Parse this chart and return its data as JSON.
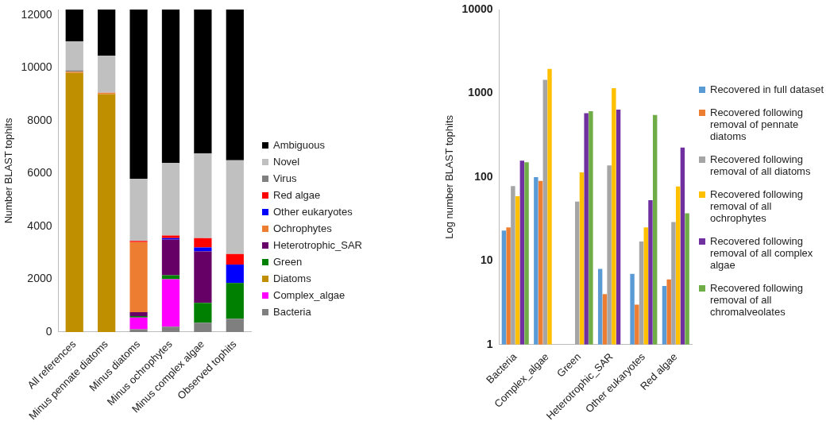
{
  "chart_data": [
    {
      "type": "bar",
      "stacked": true,
      "ylabel": "Number BLAST tophits",
      "categories": [
        "All references",
        "Minus pennate diatoms",
        "Minus diatoms",
        "Minus ochrophytes",
        "Minus complex algae",
        "Observed tophits"
      ],
      "ylim": [
        0,
        12200
      ],
      "yticks": [
        0,
        2000,
        4000,
        6000,
        8000,
        10000,
        12000
      ],
      "legend": "right",
      "series": [
        {
          "name": "Bacteria",
          "color": "#7f7f7f",
          "values": [
            null,
            null,
            100,
            200,
            350,
            500
          ]
        },
        {
          "name": "Complex_algae",
          "color": "#ff00ff",
          "values": [
            0,
            0,
            450,
            1800,
            0,
            0
          ]
        },
        {
          "name": "Diatoms",
          "color": "#bf8f00",
          "values": [
            9800,
            9000,
            0,
            0,
            0,
            0
          ]
        },
        {
          "name": "Green",
          "color": "#008000",
          "values": [
            0,
            0,
            50,
            150,
            750,
            1350
          ]
        },
        {
          "name": "Heterotrophic_SAR",
          "color": "#660066",
          "values": [
            0,
            0,
            150,
            1350,
            1950,
            0
          ]
        },
        {
          "name": "Ochrophytes",
          "color": "#ed7d31",
          "values": [
            50,
            50,
            2650,
            0,
            0,
            0
          ]
        },
        {
          "name": "Other eukaryotes",
          "color": "#0000ff",
          "values": [
            0,
            0,
            0,
            50,
            150,
            700
          ]
        },
        {
          "name": "Red algae",
          "color": "#ff0000",
          "values": [
            0,
            0,
            50,
            100,
            350,
            400
          ]
        },
        {
          "name": "Virus",
          "color": "#808080",
          "values": [
            50,
            0,
            0,
            0,
            0,
            0
          ]
        },
        {
          "name": "Novel",
          "color": "#c0c0c0",
          "values": [
            1100,
            1400,
            2350,
            2750,
            3200,
            3550
          ]
        },
        {
          "name": "Ambiguous",
          "color": "#000000",
          "values": [
            1200,
            1750,
            6400,
            5800,
            5450,
            5700
          ]
        }
      ]
    },
    {
      "type": "bar",
      "log": "y",
      "ylabel": "Log number BLAST tophits",
      "categories": [
        "Bacteria",
        "Complex_algae",
        "Green",
        "Heterotrophic_SAR",
        "Other eukaryotes",
        "Red algae"
      ],
      "ylim": [
        1,
        10000
      ],
      "yticks": [
        1,
        10,
        100,
        1000,
        10000
      ],
      "legend": "right",
      "series": [
        {
          "name": "Recovered in full dataset",
          "color": "#5b9bd5",
          "values": [
            23,
            100,
            null,
            8,
            7,
            5
          ]
        },
        {
          "name": "Recovered following removal of pennate diatoms",
          "color": "#ed7d31",
          "values": [
            25,
            90,
            null,
            4,
            3,
            6
          ]
        },
        {
          "name": "Recovered following removal of all diatoms",
          "color": "#a5a5a5",
          "values": [
            78,
            1450,
            51,
            138,
            17,
            29
          ]
        },
        {
          "name": "Recovered following removal of all ochrophytes",
          "color": "#ffc000",
          "values": [
            59,
            1950,
            114,
            1150,
            25,
            77
          ]
        },
        {
          "name": "Recovered following removal of all complex algae",
          "color": "#7030a0",
          "values": [
            157,
            null,
            580,
            640,
            53,
            225
          ]
        },
        {
          "name": "Recovered following removal of all chromalveolates",
          "color": "#70ad47",
          "values": [
            150,
            null,
            610,
            null,
            550,
            37
          ]
        }
      ]
    }
  ]
}
